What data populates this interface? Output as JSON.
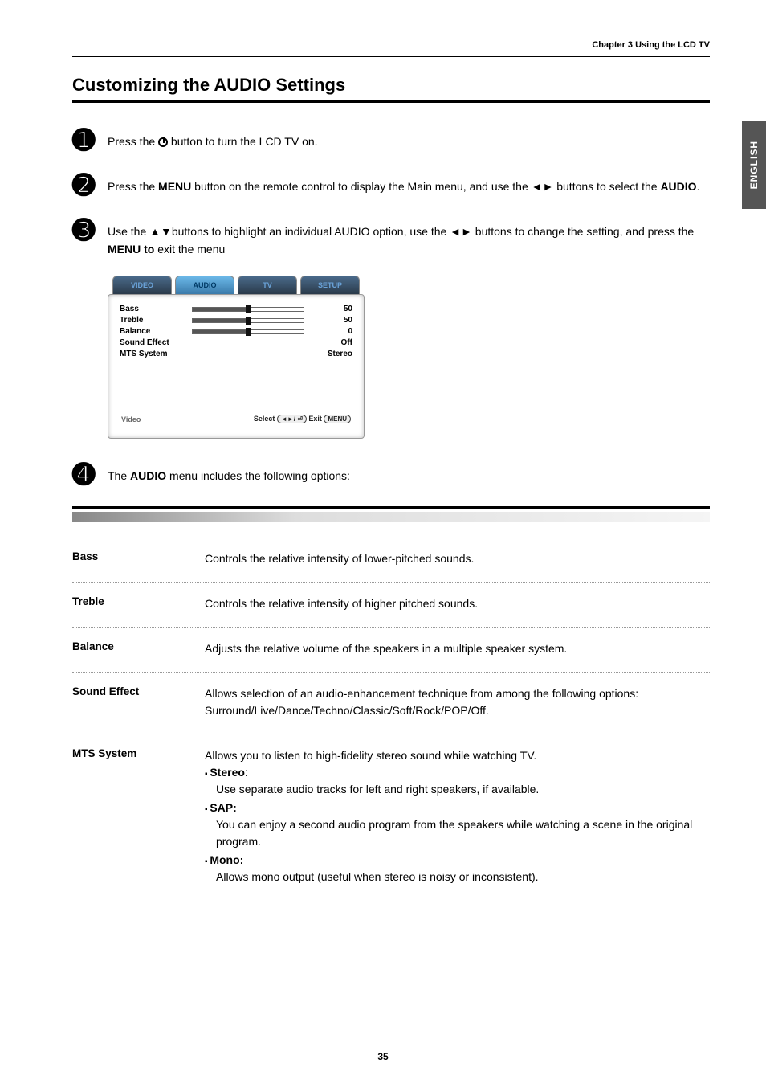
{
  "chapter_header": "Chapter 3 Using the LCD TV",
  "title": "Customizing the AUDIO Settings",
  "side_tab": "ENGLISH",
  "steps": {
    "s1": {
      "num": "➊",
      "pre": "Press the ",
      "post": " button to turn the LCD TV on."
    },
    "s2": {
      "num": "➋",
      "a": "Press the ",
      "b": "MENU",
      "c": " button on the remote control to display the Main menu, and use the ◄► buttons to select the ",
      "d": "AUDIO",
      "e": "."
    },
    "s3": {
      "num": "➌",
      "a": "Use the ▲▼buttons to highlight an individual AUDIO option, use the ◄► buttons to change the setting, and press the ",
      "b": "MENU to",
      "c": " exit the menu"
    },
    "s4": {
      "num": "➍",
      "a": "The ",
      "b": "AUDIO",
      "c": " menu includes the following options:"
    }
  },
  "osd": {
    "colors": {
      "active_tab_bg": "#6bb8e8",
      "inactive_tab_bg": "#3a5a7a",
      "tab_text": "#6aa3d9",
      "active_tab_text": "#003a66"
    },
    "tabs": [
      "VIDEO",
      "AUDIO",
      "TV",
      "SETUP"
    ],
    "active_tab_index": 1,
    "rows": [
      {
        "label": "Bass",
        "type": "slider",
        "value": 50,
        "value_text": "50"
      },
      {
        "label": "Treble",
        "type": "slider",
        "value": 50,
        "value_text": "50"
      },
      {
        "label": "Balance",
        "type": "slider",
        "value": 50,
        "value_text": "0"
      },
      {
        "label": "Sound Effect",
        "type": "text",
        "value_text": "Off"
      },
      {
        "label": "MTS System",
        "type": "text",
        "value_text": "Stereo"
      }
    ],
    "footer_left": "Video",
    "footer_select": "Select",
    "footer_nav_pill": "◄►/ ⏎",
    "footer_exit": "Exit",
    "footer_menu_pill": "MENU"
  },
  "defs": [
    {
      "term": "Bass",
      "desc": "Controls the relative intensity of lower-pitched sounds."
    },
    {
      "term": "Treble",
      "desc": "Controls the relative intensity of higher pitched sounds."
    },
    {
      "term": "Balance",
      "desc": "Adjusts the relative volume of the speakers in a multiple speaker system."
    },
    {
      "term": "Sound Effect",
      "desc": "Allows selection of an audio-enhancement technique from among the following options: Surround/Live/Dance/Techno/Classic/Soft/Rock/POP/Off."
    }
  ],
  "mts": {
    "term": "MTS System",
    "lead": "Allows you to listen to high-fidelity stereo sound while watching TV.",
    "stereo_label": "Stereo",
    "stereo_colon": ":",
    "stereo_desc": "Use separate audio tracks for left and right speakers, if available.",
    "sap_label": "SAP:",
    "sap_desc": "You can enjoy a second audio program from the speakers while watching a scene in the original program.",
    "mono_label": "Mono:",
    "mono_desc": "Allows mono output (useful when stereo is noisy or inconsistent)."
  },
  "page_number": "35"
}
